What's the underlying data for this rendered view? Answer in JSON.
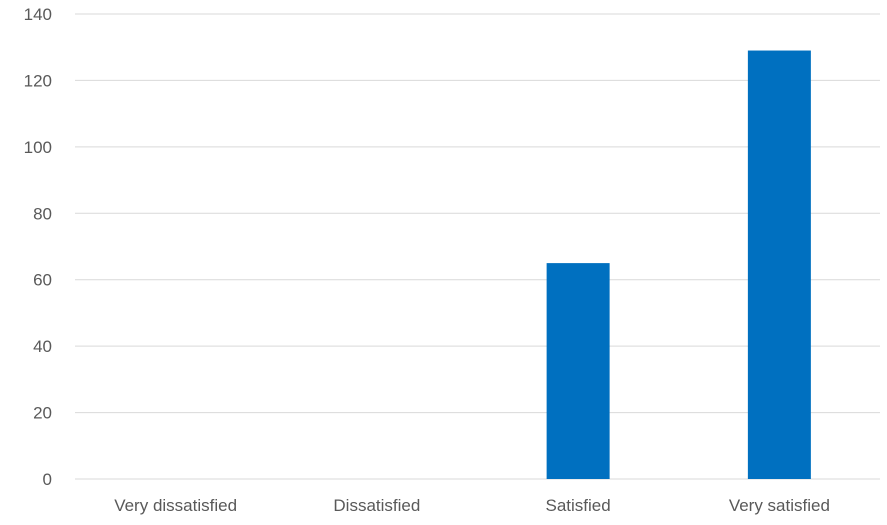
{
  "chart_data": {
    "type": "bar",
    "title": "",
    "xlabel": "",
    "ylabel": "",
    "categories": [
      "Very dissatisfied",
      "Dissatisfied",
      "Satisfied",
      "Very satisfied"
    ],
    "values": [
      0,
      0,
      65,
      129
    ],
    "ylim": [
      0,
      140
    ],
    "yticks": [
      0,
      20,
      40,
      60,
      80,
      100,
      120,
      140
    ],
    "grid": true,
    "legend": "none",
    "bar_color": "#0070c0"
  }
}
